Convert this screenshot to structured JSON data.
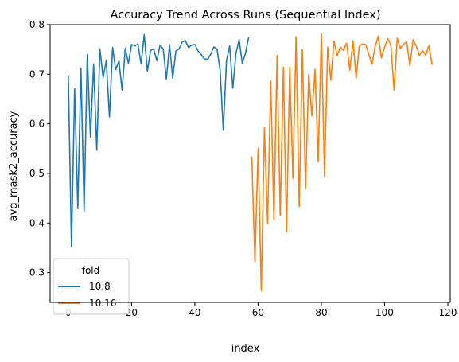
{
  "chart_data": {
    "type": "line",
    "title": "Accuracy Trend Across Runs (Sequential Index)",
    "xlabel": "index",
    "ylabel": "avg_mask2_accuracy",
    "xlim": [
      -5.75,
      120.75
    ],
    "ylim": [
      0.24,
      0.8
    ],
    "xticks": [
      0,
      20,
      40,
      60,
      80,
      100,
      120
    ],
    "xtick_labels": [
      "0",
      "20",
      "40",
      "60",
      "80",
      "100",
      "120"
    ],
    "yticks": [
      0.3,
      0.4,
      0.5,
      0.6,
      0.7,
      0.8
    ],
    "ytick_labels": [
      "0.3",
      "0.4",
      "0.5",
      "0.6",
      "0.7",
      "0.8"
    ],
    "grid": false,
    "legend": {
      "title": "fold",
      "position": "lower-left"
    },
    "series": [
      {
        "name": "10.8",
        "color": "#1f77b4",
        "x": [
          0,
          1,
          2,
          3,
          4,
          5,
          6,
          7,
          8,
          9,
          10,
          11,
          12,
          13,
          14,
          15,
          16,
          17,
          18,
          19,
          20,
          21,
          22,
          23,
          24,
          25,
          26,
          27,
          28,
          29,
          30,
          31,
          32,
          33,
          34,
          35,
          36,
          37,
          38,
          39,
          40,
          41,
          42,
          43,
          44,
          45,
          46,
          47,
          48,
          49,
          50,
          51,
          52,
          53,
          54,
          55,
          56,
          57
        ],
        "y": [
          0.698,
          0.352,
          0.671,
          0.429,
          0.712,
          0.423,
          0.74,
          0.573,
          0.721,
          0.547,
          0.751,
          0.693,
          0.728,
          0.614,
          0.754,
          0.709,
          0.727,
          0.668,
          0.752,
          0.722,
          0.76,
          0.757,
          0.761,
          0.721,
          0.78,
          0.706,
          0.748,
          0.751,
          0.727,
          0.759,
          0.751,
          0.69,
          0.76,
          0.692,
          0.747,
          0.751,
          0.765,
          0.768,
          0.754,
          0.759,
          0.76,
          0.747,
          0.74,
          0.731,
          0.73,
          0.74,
          0.755,
          0.751,
          0.708,
          0.587,
          0.727,
          0.757,
          0.672,
          0.742,
          0.77,
          0.722,
          0.742,
          0.774
        ]
      },
      {
        "name": "10.16",
        "color": "#ff7f0e",
        "x": [
          58,
          59,
          60,
          61,
          62,
          63,
          64,
          65,
          66,
          67,
          68,
          69,
          70,
          71,
          72,
          73,
          74,
          75,
          76,
          77,
          78,
          79,
          80,
          81,
          82,
          83,
          84,
          85,
          86,
          87,
          88,
          89,
          90,
          91,
          92,
          93,
          94,
          95,
          96,
          97,
          98,
          99,
          100,
          101,
          102,
          103,
          104,
          105,
          106,
          107,
          108,
          109,
          110,
          111,
          112,
          113,
          114,
          115
        ],
        "y": [
          0.533,
          0.321,
          0.55,
          0.264,
          0.592,
          0.399,
          0.686,
          0.407,
          0.738,
          0.415,
          0.714,
          0.382,
          0.714,
          0.49,
          0.775,
          0.433,
          0.75,
          0.47,
          0.7,
          0.616,
          0.71,
          0.524,
          0.783,
          0.494,
          0.755,
          0.688,
          0.767,
          0.737,
          0.755,
          0.748,
          0.763,
          0.708,
          0.768,
          0.692,
          0.758,
          0.761,
          0.76,
          0.74,
          0.72,
          0.756,
          0.777,
          0.733,
          0.755,
          0.772,
          0.758,
          0.668,
          0.773,
          0.752,
          0.761,
          0.765,
          0.717,
          0.77,
          0.757,
          0.738,
          0.748,
          0.738,
          0.758,
          0.72
        ]
      }
    ]
  }
}
